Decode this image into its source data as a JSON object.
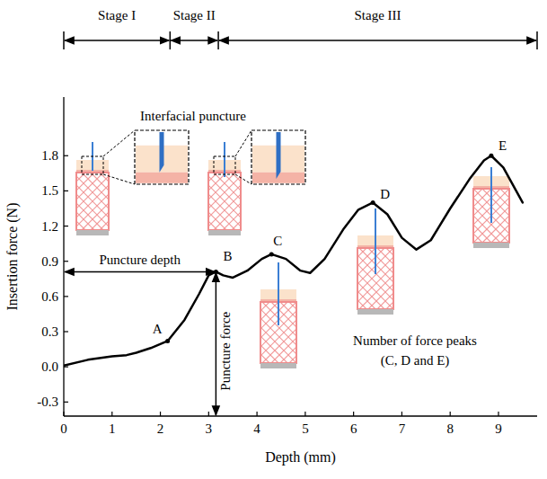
{
  "chart_data": {
    "type": "line",
    "x_label": "Depth (mm)",
    "y_label": "Insertion force (N)",
    "color": "#000000",
    "xlim": [
      0,
      9.8
    ],
    "ylim": [
      -0.42,
      2.3
    ],
    "xticks": [
      0,
      1,
      2,
      3,
      4,
      5,
      6,
      7,
      8,
      9
    ],
    "yticks": [
      -0.3,
      {
        "value": 0,
        "label": "0.0"
      },
      0.3,
      0.6,
      0.9,
      1.2,
      1.5,
      1.8
    ],
    "grid": false,
    "x": [
      0,
      0.5,
      1,
      1.3,
      1.5,
      1.8,
      2.15,
      2.5,
      2.8,
      3.0,
      3.15,
      3.3,
      3.5,
      3.8,
      4.1,
      4.3,
      4.6,
      4.9,
      5.1,
      5.4,
      5.8,
      6.1,
      6.4,
      6.7,
      7.0,
      7.3,
      7.6,
      8.0,
      8.4,
      8.7,
      8.85,
      9.1,
      9.3,
      9.5
    ],
    "values": [
      0.01,
      0.06,
      0.09,
      0.1,
      0.12,
      0.16,
      0.22,
      0.4,
      0.62,
      0.78,
      0.81,
      0.78,
      0.76,
      0.82,
      0.92,
      0.96,
      0.92,
      0.82,
      0.8,
      0.92,
      1.18,
      1.34,
      1.4,
      1.3,
      1.1,
      1.0,
      1.08,
      1.35,
      1.6,
      1.76,
      1.8,
      1.7,
      1.55,
      1.4
    ],
    "points": [
      {
        "label": "A",
        "x": 2.15,
        "y": 0.22
      },
      {
        "label": "B",
        "x": 3.15,
        "y": 0.81
      },
      {
        "label": "C",
        "x": 4.3,
        "y": 0.96
      },
      {
        "label": "D",
        "x": 6.4,
        "y": 1.4
      },
      {
        "label": "E",
        "x": 8.85,
        "y": 1.8
      }
    ],
    "stages": [
      {
        "label": "Stage I",
        "start": 0,
        "end": 2.2
      },
      {
        "label": "Stage II",
        "start": 2.2,
        "end": 3.2
      },
      {
        "label": "Stage III",
        "start": 3.2,
        "end": 9.8
      }
    ],
    "puncture": {
      "depth": 3.15,
      "force": 0.81,
      "depth_label": "Puncture depth",
      "force_label": "Puncture force"
    },
    "annotations": {
      "interfacial": "Interfacial puncture",
      "peaks": [
        "Number of force peaks",
        "(C, D and E)"
      ]
    }
  }
}
